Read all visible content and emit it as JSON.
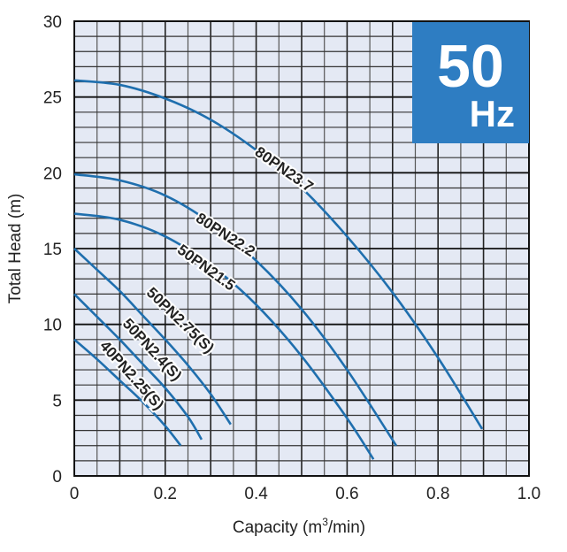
{
  "chart_data": {
    "type": "line",
    "xlabel": "Capacity (m3/min)",
    "xlabel_main": "Capacity (m",
    "xlabel_sup": "3",
    "xlabel_end": "/min)",
    "ylabel": "Total Head (m)",
    "xlim": [
      0,
      1.0
    ],
    "ylim": [
      0,
      30
    ],
    "xticks": [
      "0",
      "0.2",
      "0.4",
      "0.6",
      "0.8",
      "1.0"
    ],
    "yticks": [
      "0",
      "5",
      "10",
      "15",
      "20",
      "25",
      "30"
    ],
    "grid": true,
    "badge": {
      "number": "50",
      "unit": "Hz"
    },
    "colors": {
      "curve": "#1f6fae",
      "plot_bg": "#e4e9f4",
      "badge": "#2e7dc2"
    },
    "series": [
      {
        "name": "80PN23.7",
        "q": [
          0,
          0.1,
          0.2,
          0.3,
          0.4,
          0.5,
          0.6,
          0.7,
          0.8,
          0.897
        ],
        "h": [
          26.1,
          25.8,
          24.9,
          23.5,
          21.5,
          19.0,
          15.8,
          12.1,
          7.8,
          3.1
        ]
      },
      {
        "name": "80PN22.2",
        "q": [
          0,
          0.1,
          0.2,
          0.3,
          0.4,
          0.5,
          0.6,
          0.708
        ],
        "h": [
          19.9,
          19.5,
          18.5,
          16.7,
          14.2,
          11.0,
          7.0,
          2.0
        ]
      },
      {
        "name": "50PN21.5",
        "q": [
          0,
          0.1,
          0.2,
          0.3,
          0.4,
          0.5,
          0.6,
          0.658
        ],
        "h": [
          17.3,
          16.9,
          15.8,
          13.9,
          11.3,
          7.9,
          3.8,
          1.1
        ]
      },
      {
        "name": "50PN2.75(S)",
        "q": [
          0,
          0.05,
          0.1,
          0.15,
          0.2,
          0.25,
          0.3,
          0.344
        ],
        "h": [
          15,
          13.6,
          12.2,
          10.6,
          9.0,
          7.3,
          5.4,
          3.4
        ]
      },
      {
        "name": "50PN2.4(S)",
        "q": [
          0,
          0.05,
          0.1,
          0.15,
          0.2,
          0.25,
          0.28
        ],
        "h": [
          12,
          10.5,
          9.0,
          7.4,
          5.8,
          3.9,
          2.4
        ]
      },
      {
        "name": "40PN2.25(S)",
        "q": [
          0,
          0.05,
          0.1,
          0.15,
          0.2,
          0.234
        ],
        "h": [
          9,
          7.7,
          6.3,
          4.9,
          3.3,
          2.0
        ]
      }
    ]
  }
}
